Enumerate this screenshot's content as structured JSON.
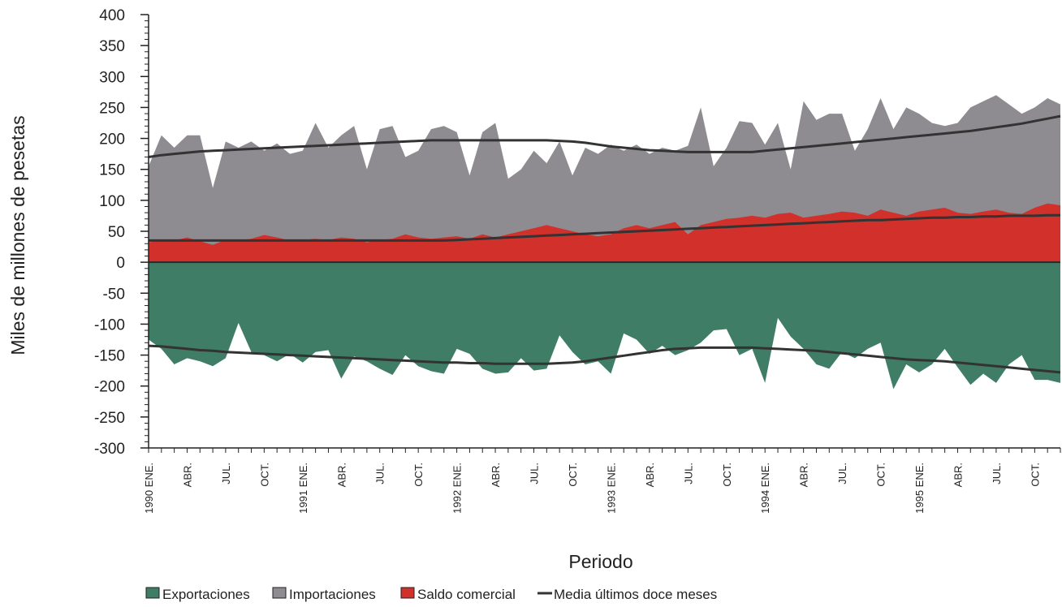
{
  "chart_data": {
    "type": "area",
    "xlabel": "Periodo",
    "ylabel": "Miles de millones de pesetas",
    "ylim": [
      -300,
      400
    ],
    "yticks": [
      400,
      350,
      300,
      250,
      200,
      150,
      100,
      50,
      0,
      -50,
      -100,
      -150,
      -200,
      -250,
      -300
    ],
    "x_tick_labels": [
      "1990 ENE.",
      "ABR.",
      "JUL.",
      "OCT.",
      "1991 ENE.",
      "ABR.",
      "JUL.",
      "OCT.",
      "1992 ENE.",
      "ABR.",
      "JUL.",
      "OCT.",
      "1993 ENE.",
      "ABR.",
      "JUL.",
      "OCT.",
      "1994 ENE.",
      "ABR.",
      "JUL.",
      "OCT.",
      "1995 ENE.",
      "ABR.",
      "JUL.",
      "OCT."
    ],
    "months": 72,
    "grid": false,
    "legend_position": "bottom",
    "colors": {
      "exportaciones": "#3f7d66",
      "importaciones": "#8e8b91",
      "saldo": "#d2302a",
      "media": "#333333",
      "axis": "#222222"
    },
    "series": [
      {
        "name": "Exportaciones",
        "kind": "area",
        "values": [
          -125,
          -140,
          -165,
          -155,
          -160,
          -168,
          -155,
          -98,
          -145,
          -150,
          -160,
          -148,
          -162,
          -145,
          -142,
          -188,
          -152,
          -160,
          -172,
          -182,
          -150,
          -168,
          -176,
          -180,
          -140,
          -148,
          -172,
          -180,
          -178,
          -155,
          -175,
          -172,
          -118,
          -145,
          -165,
          -160,
          -180,
          -115,
          -125,
          -148,
          -135,
          -150,
          -142,
          -130,
          -110,
          -108,
          -150,
          -140,
          -195,
          -90,
          -120,
          -140,
          -165,
          -172,
          -145,
          -155,
          -140,
          -130,
          -205,
          -165,
          -178,
          -165,
          -140,
          -170,
          -198,
          -180,
          -195,
          -165,
          -150,
          -190,
          -190,
          -195
        ]
      },
      {
        "name": "Importaciones",
        "kind": "area",
        "values": [
          155,
          205,
          185,
          205,
          205,
          120,
          195,
          185,
          195,
          180,
          192,
          175,
          180,
          225,
          185,
          205,
          220,
          150,
          215,
          220,
          170,
          180,
          215,
          220,
          210,
          140,
          210,
          225,
          135,
          150,
          180,
          160,
          195,
          140,
          185,
          175,
          190,
          180,
          190,
          175,
          185,
          180,
          188,
          250,
          155,
          185,
          228,
          225,
          190,
          225,
          150,
          260,
          230,
          240,
          240,
          180,
          215,
          265,
          215,
          250,
          240,
          225,
          220,
          225,
          250,
          260,
          270,
          255,
          240,
          250,
          265,
          255
        ]
      },
      {
        "name": "Saldo comercial",
        "kind": "area",
        "values": [
          32,
          35,
          35,
          40,
          34,
          28,
          36,
          35,
          38,
          44,
          40,
          35,
          36,
          38,
          36,
          40,
          38,
          32,
          36,
          38,
          45,
          40,
          38,
          40,
          42,
          38,
          45,
          40,
          45,
          50,
          55,
          60,
          55,
          50,
          45,
          42,
          45,
          55,
          60,
          55,
          60,
          65,
          45,
          60,
          65,
          70,
          72,
          75,
          72,
          78,
          80,
          72,
          75,
          78,
          82,
          80,
          75,
          85,
          80,
          75,
          82,
          85,
          88,
          80,
          78,
          82,
          85,
          80,
          78,
          88,
          95,
          92
        ]
      },
      {
        "name": "Media últimos doce meses",
        "kind": "line",
        "segments": [
          [
            170,
            173,
            175,
            177,
            179,
            180,
            181,
            182,
            183,
            184,
            185,
            186,
            187,
            188,
            189,
            190,
            191,
            192,
            193,
            194,
            195,
            196,
            197,
            197,
            197,
            197,
            197,
            197,
            197,
            197,
            197,
            197,
            196,
            195,
            193,
            190,
            187,
            185,
            183,
            181,
            180,
            179,
            178,
            178,
            178,
            178,
            178,
            178,
            180,
            182,
            184,
            186,
            188,
            190,
            192,
            194,
            196,
            198,
            200,
            202,
            204,
            206,
            208,
            210,
            212,
            215,
            218,
            221,
            224,
            228,
            232,
            236
          ],
          [
            35,
            35,
            35,
            35,
            35,
            35,
            35,
            35,
            35,
            35,
            35,
            35,
            35,
            35,
            35,
            35,
            35,
            35,
            35,
            35,
            35,
            35,
            35,
            35,
            36,
            37,
            38,
            39,
            40,
            41,
            42,
            43,
            44,
            45,
            46,
            47,
            48,
            49,
            50,
            51,
            52,
            53,
            54,
            55,
            56,
            57,
            58,
            59,
            60,
            61,
            62,
            63,
            64,
            65,
            66,
            67,
            68,
            68,
            69,
            70,
            71,
            72,
            72,
            73,
            73,
            74,
            74,
            75,
            75,
            75,
            76,
            76
          ],
          [
            -135,
            -136,
            -138,
            -140,
            -142,
            -143,
            -145,
            -146,
            -147,
            -148,
            -149,
            -150,
            -151,
            -152,
            -153,
            -154,
            -155,
            -156,
            -157,
            -158,
            -159,
            -160,
            -161,
            -162,
            -162,
            -163,
            -163,
            -164,
            -164,
            -164,
            -164,
            -164,
            -163,
            -162,
            -160,
            -157,
            -154,
            -151,
            -148,
            -145,
            -142,
            -140,
            -139,
            -138,
            -138,
            -138,
            -138,
            -138,
            -139,
            -140,
            -141,
            -142,
            -143,
            -145,
            -147,
            -149,
            -151,
            -153,
            -155,
            -157,
            -158,
            -159,
            -160,
            -162,
            -164,
            -166,
            -168,
            -170,
            -172,
            -174,
            -176,
            -178
          ]
        ]
      }
    ]
  }
}
